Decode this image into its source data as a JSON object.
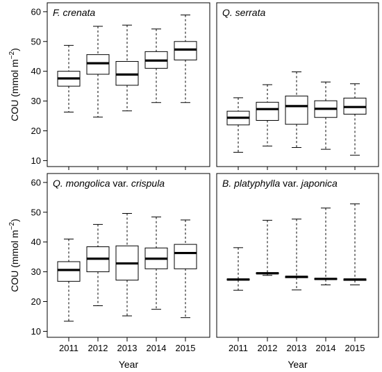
{
  "chart_data": {
    "type": "boxplot",
    "x_label": "Year",
    "y_label_main": "COU (mmol m",
    "y_label_sup": "−2",
    "y_label_close": ")",
    "categories": [
      "2011",
      "2012",
      "2013",
      "2014",
      "2015"
    ],
    "ylim": [
      8,
      63
    ],
    "yticks": [
      10,
      20,
      30,
      40,
      50,
      60
    ],
    "panels": [
      {
        "title_parts": [
          {
            "text": "F. crenata",
            "italic": true
          }
        ],
        "boxes": [
          {
            "year": "2011",
            "min": 26.3,
            "q1": 35.0,
            "median": 37.6,
            "q3": 40.0,
            "max": 48.7
          },
          {
            "year": "2012",
            "min": 24.6,
            "q1": 39.0,
            "median": 42.7,
            "q3": 45.6,
            "max": 55.1
          },
          {
            "year": "2013",
            "min": 26.7,
            "q1": 35.3,
            "median": 38.9,
            "q3": 43.3,
            "max": 55.5
          },
          {
            "year": "2014",
            "min": 29.5,
            "q1": 41.0,
            "median": 43.6,
            "q3": 46.6,
            "max": 54.2
          },
          {
            "year": "2015",
            "min": 29.5,
            "q1": 43.8,
            "median": 47.3,
            "q3": 50.0,
            "max": 58.9
          }
        ]
      },
      {
        "title_parts": [
          {
            "text": "Q. serrata",
            "italic": true
          }
        ],
        "boxes": [
          {
            "year": "2011",
            "min": 12.8,
            "q1": 22.0,
            "median": 24.4,
            "q3": 26.6,
            "max": 31.1
          },
          {
            "year": "2012",
            "min": 14.9,
            "q1": 23.5,
            "median": 27.3,
            "q3": 29.6,
            "max": 35.5
          },
          {
            "year": "2013",
            "min": 14.4,
            "q1": 22.2,
            "median": 28.3,
            "q3": 31.7,
            "max": 39.8
          },
          {
            "year": "2014",
            "min": 13.8,
            "q1": 24.5,
            "median": 27.4,
            "q3": 30.1,
            "max": 36.4
          },
          {
            "year": "2015",
            "min": 11.8,
            "q1": 25.6,
            "median": 28.0,
            "q3": 31.0,
            "max": 35.8
          }
        ]
      },
      {
        "title_parts": [
          {
            "text": "Q. mongolica",
            "italic": true
          },
          {
            "text": " var. ",
            "italic": false
          },
          {
            "text": "crispula",
            "italic": true
          }
        ],
        "boxes": [
          {
            "year": "2011",
            "min": 13.4,
            "q1": 26.8,
            "median": 30.6,
            "q3": 33.4,
            "max": 41.0
          },
          {
            "year": "2012",
            "min": 18.6,
            "q1": 30.0,
            "median": 34.4,
            "q3": 38.4,
            "max": 45.9
          },
          {
            "year": "2013",
            "min": 15.2,
            "q1": 27.2,
            "median": 32.8,
            "q3": 38.7,
            "max": 49.6
          },
          {
            "year": "2014",
            "min": 17.4,
            "q1": 31.0,
            "median": 34.4,
            "q3": 38.0,
            "max": 48.4
          },
          {
            "year": "2015",
            "min": 14.6,
            "q1": 31.0,
            "median": 36.3,
            "q3": 39.2,
            "max": 47.4
          }
        ]
      },
      {
        "title_parts": [
          {
            "text": "B. platyphylla",
            "italic": true
          },
          {
            "text": " var. ",
            "italic": false
          },
          {
            "text": "japonica",
            "italic": true
          }
        ],
        "boxes": [
          {
            "year": "2011",
            "min": 23.8,
            "q1": 27.2,
            "median": 27.4,
            "q3": 27.6,
            "max": 38.1
          },
          {
            "year": "2012",
            "min": 28.8,
            "q1": 29.3,
            "median": 29.5,
            "q3": 29.7,
            "max": 47.3
          },
          {
            "year": "2013",
            "min": 23.9,
            "q1": 28.0,
            "median": 28.3,
            "q3": 28.5,
            "max": 47.7
          },
          {
            "year": "2014",
            "min": 25.6,
            "q1": 27.4,
            "median": 27.6,
            "q3": 27.8,
            "max": 51.4
          },
          {
            "year": "2015",
            "min": 25.6,
            "q1": 27.1,
            "median": 27.4,
            "q3": 27.6,
            "max": 52.8
          }
        ]
      }
    ]
  }
}
